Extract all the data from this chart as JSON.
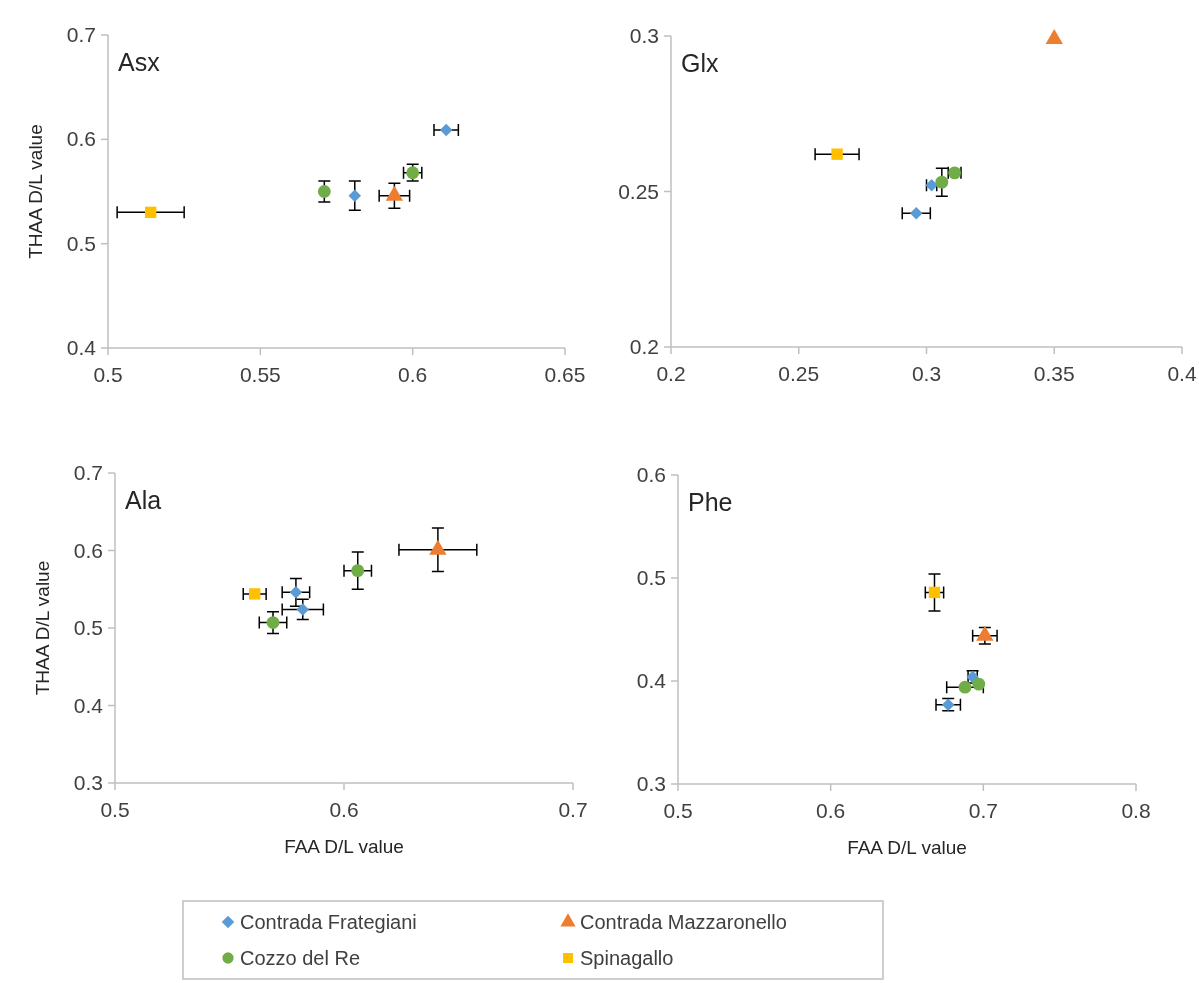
{
  "chart_data": [
    {
      "type": "scatter",
      "ylabel": "THAA D/L value",
      "annotations": [
        "Asx"
      ],
      "xlim": [
        0.5,
        0.65
      ],
      "xticks": [
        0.5,
        0.55,
        0.6,
        0.65
      ],
      "ylim": [
        0.4,
        0.7
      ],
      "yticks": [
        0.4,
        0.5,
        0.6,
        0.7
      ],
      "grid": false,
      "series": [
        {
          "color": "#5b9bd5",
          "marker": "diamond",
          "x": [
            0.581,
            0.611
          ],
          "values": [
            0.546,
            0.609
          ],
          "xerrors": [
            null,
            0.004
          ],
          "errors": [
            0.014,
            null
          ]
        },
        {
          "color": "#ed7d31",
          "marker": "triangle",
          "x": [
            0.594
          ],
          "values": [
            0.546
          ],
          "xerrors": [
            0.005
          ],
          "errors": [
            0.012
          ]
        },
        {
          "color": "#70ad47",
          "marker": "circle",
          "x": [
            0.571,
            0.6
          ],
          "values": [
            0.55,
            0.568
          ],
          "xerrors": [
            null,
            0.003
          ],
          "errors": [
            0.01,
            0.008
          ]
        },
        {
          "color": "#ffc000",
          "marker": "square",
          "x": [
            0.514
          ],
          "values": [
            0.53
          ],
          "xerrors": [
            0.011
          ],
          "errors": [
            null
          ]
        }
      ]
    },
    {
      "type": "scatter",
      "annotations": [
        "Glx"
      ],
      "xlim": [
        0.2,
        0.4
      ],
      "xticks": [
        0.2,
        0.25,
        0.3,
        0.35,
        0.4
      ],
      "ylim": [
        0.2,
        0.3
      ],
      "yticks": [
        0.2,
        0.25,
        0.3
      ],
      "grid": false,
      "series": [
        {
          "color": "#5b9bd5",
          "marker": "diamond",
          "x": [
            0.296,
            0.302
          ],
          "values": [
            0.243,
            0.252
          ],
          "xerrors": [
            0.0055,
            0.002
          ],
          "errors": [
            null,
            null
          ]
        },
        {
          "color": "#ed7d31",
          "marker": "triangle",
          "x": [
            0.35
          ],
          "values": [
            0.299
          ],
          "xerrors": [
            null
          ],
          "errors": [
            null
          ]
        },
        {
          "color": "#70ad47",
          "marker": "circle",
          "x": [
            0.306,
            0.311
          ],
          "values": [
            0.253,
            0.256
          ],
          "xerrors": [
            null,
            0.0025
          ],
          "errors": [
            0.0045,
            null
          ]
        },
        {
          "color": "#ffc000",
          "marker": "square",
          "x": [
            0.265
          ],
          "values": [
            0.262
          ],
          "xerrors": [
            0.0086
          ],
          "errors": [
            null
          ]
        }
      ]
    },
    {
      "type": "scatter",
      "ylabel": "THAA D/L value",
      "xlabel": "FAA D/L value",
      "annotations": [
        "Ala"
      ],
      "xlim": [
        0.5,
        0.7
      ],
      "xticks": [
        0.5,
        0.6,
        0.7
      ],
      "ylim": [
        0.3,
        0.7
      ],
      "yticks": [
        0.3,
        0.4,
        0.5,
        0.6,
        0.7
      ],
      "grid": false,
      "series": [
        {
          "color": "#5b9bd5",
          "marker": "diamond",
          "x": [
            0.579,
            0.582
          ],
          "values": [
            0.546,
            0.524
          ],
          "xerrors": [
            0.006,
            0.009
          ],
          "errors": [
            0.018,
            0.013
          ]
        },
        {
          "color": "#ed7d31",
          "marker": "triangle",
          "x": [
            0.641
          ],
          "values": [
            0.601
          ],
          "xerrors": [
            0.017
          ],
          "errors": [
            0.028
          ]
        },
        {
          "color": "#70ad47",
          "marker": "circle",
          "x": [
            0.569,
            0.606
          ],
          "values": [
            0.507,
            0.574
          ],
          "xerrors": [
            0.006,
            0.006
          ],
          "errors": [
            0.014,
            0.024
          ]
        },
        {
          "color": "#ffc000",
          "marker": "square",
          "x": [
            0.561
          ],
          "values": [
            0.544
          ],
          "xerrors": [
            0.005
          ],
          "errors": [
            null
          ]
        }
      ]
    },
    {
      "type": "scatter",
      "xlabel": "FAA D/L value",
      "annotations": [
        "Phe"
      ],
      "xlim": [
        0.5,
        0.8
      ],
      "xticks": [
        0.5,
        0.6,
        0.7,
        0.8
      ],
      "ylim": [
        0.3,
        0.6
      ],
      "yticks": [
        0.3,
        0.4,
        0.5,
        0.6
      ],
      "grid": false,
      "legend": "bottom",
      "series": [
        {
          "name": "Contrada Frategiani",
          "color": "#5b9bd5",
          "marker": "diamond",
          "x": [
            0.693,
            0.677
          ],
          "values": [
            0.404,
            0.377
          ],
          "xerrors": [
            0.003,
            0.008
          ],
          "errors": [
            0.006,
            0.006
          ]
        },
        {
          "name": "Contrada Mazzaronello",
          "color": "#ed7d31",
          "marker": "triangle",
          "x": [
            0.701
          ],
          "values": [
            0.444
          ],
          "xerrors": [
            0.008
          ],
          "errors": [
            0.008
          ]
        },
        {
          "name": "Cozzo del Re",
          "color": "#70ad47",
          "marker": "circle",
          "x": [
            0.688,
            0.697
          ],
          "values": [
            0.394,
            0.397
          ],
          "xerrors": [
            0.012,
            null
          ],
          "errors": [
            null,
            null
          ]
        },
        {
          "name": "Spinagallo",
          "color": "#ffc000",
          "marker": "square",
          "x": [
            0.668
          ],
          "values": [
            0.486
          ],
          "xerrors": [
            0.006
          ],
          "errors": [
            0.018
          ]
        }
      ]
    }
  ]
}
